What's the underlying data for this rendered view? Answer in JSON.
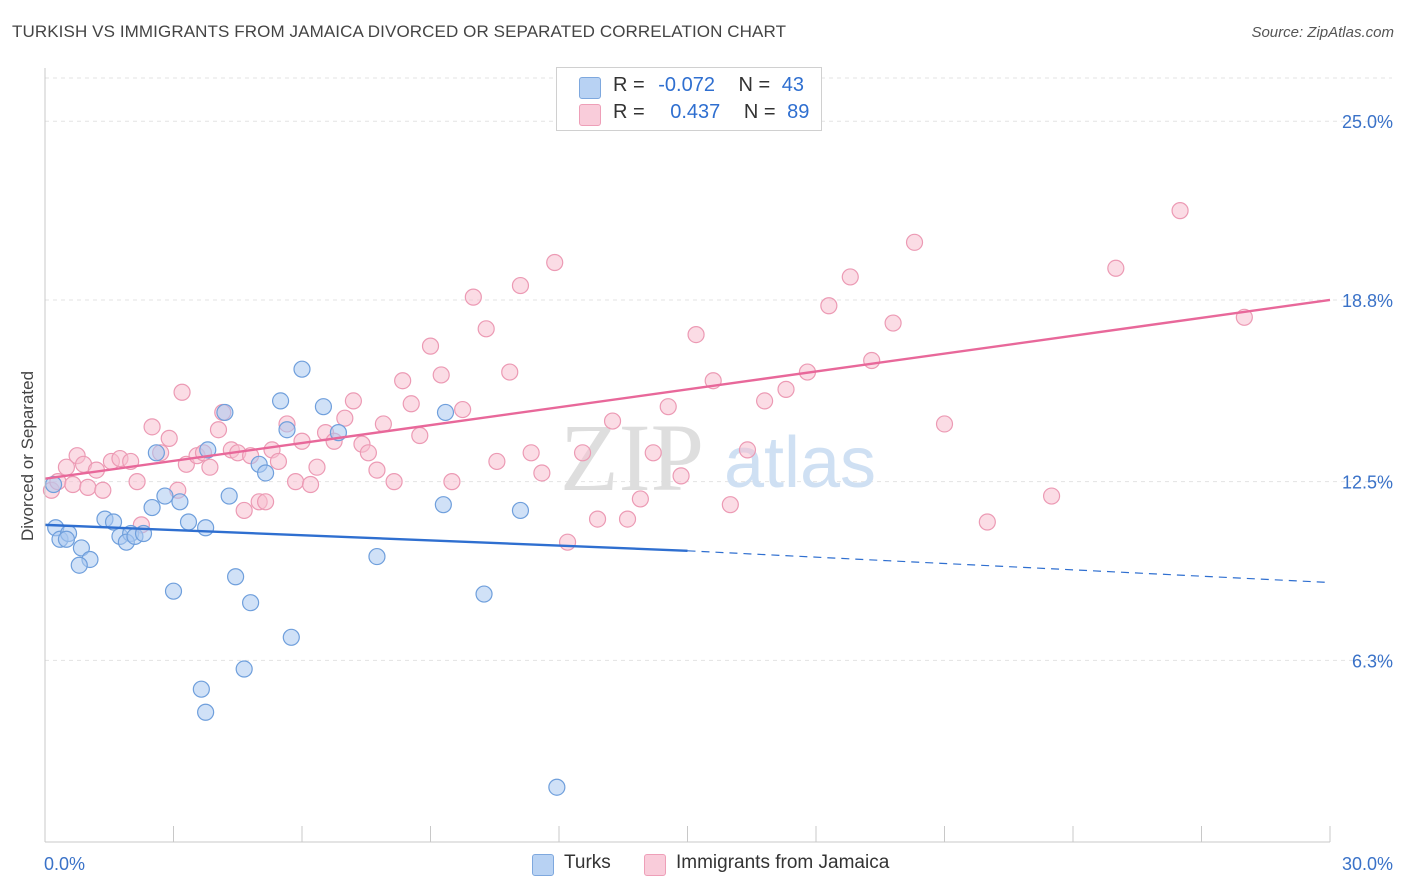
{
  "header": {
    "title": "TURKISH VS IMMIGRANTS FROM JAMAICA DIVORCED OR SEPARATED CORRELATION CHART",
    "source": "Source: ZipAtlas.com"
  },
  "watermark": {
    "zip": "ZIP",
    "atlas": "atlas"
  },
  "legend_top": {
    "rows": [
      {
        "r_label": "R =",
        "r_value": "-0.072",
        "n_label": "N =",
        "n_value": "43"
      },
      {
        "r_label": "R =",
        "r_value": "0.437",
        "n_label": "N =",
        "n_value": "89"
      }
    ]
  },
  "legend_bottom": {
    "items": [
      "Turks",
      "Immigrants from Jamaica"
    ]
  },
  "colors": {
    "turks_fill": "#a9c8f0",
    "turks_stroke": "#6f9fdc",
    "turks_line": "#2f6fd0",
    "jamaica_fill": "#f7c0d0",
    "jamaica_stroke": "#ec9ab4",
    "jamaica_line": "#e8689a",
    "tick_label": "#3a72c8",
    "grid": "#e3e3e3"
  },
  "chart_data": {
    "type": "scatter",
    "title": "TURKISH VS IMMIGRANTS FROM JAMAICA DIVORCED OR SEPARATED CORRELATION CHART",
    "xlabel": "",
    "ylabel": "Divorced or Separated",
    "xlim": [
      0,
      30
    ],
    "ylim": [
      0,
      26.5
    ],
    "x_tick_labels": [
      "0.0%",
      "30.0%"
    ],
    "y_ticks": [
      6.3,
      12.5,
      18.8,
      25.0
    ],
    "y_tick_labels": [
      "6.3%",
      "12.5%",
      "18.8%",
      "25.0%"
    ],
    "grid": true,
    "series": [
      {
        "name": "Turks",
        "r": -0.072,
        "n": 43,
        "trend": {
          "x0": 0.0,
          "y0": 11.0,
          "x1": 15.0,
          "y1": 10.1,
          "dash_to_x": 30.0,
          "dash_to_y": 9.0
        },
        "points": [
          [
            0.2,
            12.4
          ],
          [
            0.25,
            10.9
          ],
          [
            0.35,
            10.5
          ],
          [
            0.55,
            10.7
          ],
          [
            0.5,
            10.5
          ],
          [
            0.85,
            10.2
          ],
          [
            1.05,
            9.8
          ],
          [
            0.8,
            9.6
          ],
          [
            1.4,
            11.2
          ],
          [
            1.6,
            11.1
          ],
          [
            1.75,
            10.6
          ],
          [
            2.0,
            10.7
          ],
          [
            1.9,
            10.4
          ],
          [
            2.1,
            10.6
          ],
          [
            2.3,
            10.7
          ],
          [
            2.5,
            11.6
          ],
          [
            2.6,
            13.5
          ],
          [
            2.8,
            12.0
          ],
          [
            3.0,
            8.7
          ],
          [
            3.15,
            11.8
          ],
          [
            3.35,
            11.1
          ],
          [
            3.75,
            10.9
          ],
          [
            3.8,
            13.6
          ],
          [
            3.65,
            5.3
          ],
          [
            3.75,
            4.5
          ],
          [
            4.2,
            14.9
          ],
          [
            4.3,
            12.0
          ],
          [
            4.45,
            9.2
          ],
          [
            4.8,
            8.3
          ],
          [
            4.65,
            6.0
          ],
          [
            5.0,
            13.1
          ],
          [
            5.15,
            12.8
          ],
          [
            5.5,
            15.3
          ],
          [
            5.65,
            14.3
          ],
          [
            5.75,
            7.1
          ],
          [
            6.0,
            16.4
          ],
          [
            6.5,
            15.1
          ],
          [
            6.85,
            14.2
          ],
          [
            7.75,
            9.9
          ],
          [
            9.3,
            11.7
          ],
          [
            9.35,
            14.9
          ],
          [
            10.25,
            8.6
          ],
          [
            11.1,
            11.5
          ],
          [
            11.95,
            1.9
          ]
        ]
      },
      {
        "name": "Immigrants from Jamaica",
        "r": 0.437,
        "n": 89,
        "trend": {
          "x0": 0.0,
          "y0": 12.6,
          "x1": 30.0,
          "y1": 18.8
        },
        "points": [
          [
            0.15,
            12.2
          ],
          [
            0.3,
            12.5
          ],
          [
            0.5,
            13.0
          ],
          [
            0.65,
            12.4
          ],
          [
            0.75,
            13.4
          ],
          [
            0.9,
            13.1
          ],
          [
            1.0,
            12.3
          ],
          [
            1.2,
            12.9
          ],
          [
            1.35,
            12.2
          ],
          [
            1.55,
            13.2
          ],
          [
            1.75,
            13.3
          ],
          [
            2.0,
            13.2
          ],
          [
            2.15,
            12.5
          ],
          [
            2.25,
            11.0
          ],
          [
            2.5,
            14.4
          ],
          [
            2.7,
            13.5
          ],
          [
            2.9,
            14.0
          ],
          [
            3.1,
            12.2
          ],
          [
            3.3,
            13.1
          ],
          [
            3.55,
            13.4
          ],
          [
            3.7,
            13.5
          ],
          [
            3.85,
            13.0
          ],
          [
            4.05,
            14.3
          ],
          [
            4.15,
            14.9
          ],
          [
            4.35,
            13.6
          ],
          [
            4.5,
            13.5
          ],
          [
            4.65,
            11.5
          ],
          [
            4.8,
            13.4
          ],
          [
            5.0,
            11.8
          ],
          [
            5.15,
            11.8
          ],
          [
            5.3,
            13.6
          ],
          [
            5.45,
            13.2
          ],
          [
            5.65,
            14.5
          ],
          [
            5.85,
            12.5
          ],
          [
            6.0,
            13.9
          ],
          [
            6.2,
            12.4
          ],
          [
            6.35,
            13.0
          ],
          [
            6.55,
            14.2
          ],
          [
            6.75,
            13.9
          ],
          [
            7.0,
            14.7
          ],
          [
            7.2,
            15.3
          ],
          [
            7.4,
            13.8
          ],
          [
            7.55,
            13.5
          ],
          [
            7.75,
            12.9
          ],
          [
            7.9,
            14.5
          ],
          [
            8.15,
            12.5
          ],
          [
            8.35,
            16.0
          ],
          [
            8.55,
            15.2
          ],
          [
            8.75,
            14.1
          ],
          [
            9.0,
            17.2
          ],
          [
            9.25,
            16.2
          ],
          [
            9.5,
            12.5
          ],
          [
            9.75,
            15.0
          ],
          [
            10.0,
            18.9
          ],
          [
            10.3,
            17.8
          ],
          [
            10.55,
            13.2
          ],
          [
            10.85,
            16.3
          ],
          [
            11.1,
            19.3
          ],
          [
            11.35,
            13.5
          ],
          [
            11.6,
            12.8
          ],
          [
            11.9,
            20.1
          ],
          [
            12.2,
            10.4
          ],
          [
            12.55,
            13.5
          ],
          [
            12.9,
            11.2
          ],
          [
            13.25,
            14.6
          ],
          [
            13.6,
            11.2
          ],
          [
            13.9,
            11.9
          ],
          [
            14.2,
            13.5
          ],
          [
            14.55,
            15.1
          ],
          [
            14.85,
            12.7
          ],
          [
            15.2,
            17.6
          ],
          [
            15.6,
            16.0
          ],
          [
            16.0,
            11.7
          ],
          [
            16.4,
            13.6
          ],
          [
            16.8,
            15.3
          ],
          [
            17.3,
            15.7
          ],
          [
            17.8,
            16.3
          ],
          [
            18.3,
            18.6
          ],
          [
            18.8,
            19.6
          ],
          [
            19.3,
            16.7
          ],
          [
            19.8,
            18.0
          ],
          [
            20.3,
            20.8
          ],
          [
            21.0,
            14.5
          ],
          [
            22.0,
            11.1
          ],
          [
            23.5,
            12.0
          ],
          [
            25.0,
            19.9
          ],
          [
            26.5,
            21.9
          ],
          [
            28.0,
            18.2
          ],
          [
            3.2,
            15.6
          ]
        ]
      }
    ]
  }
}
